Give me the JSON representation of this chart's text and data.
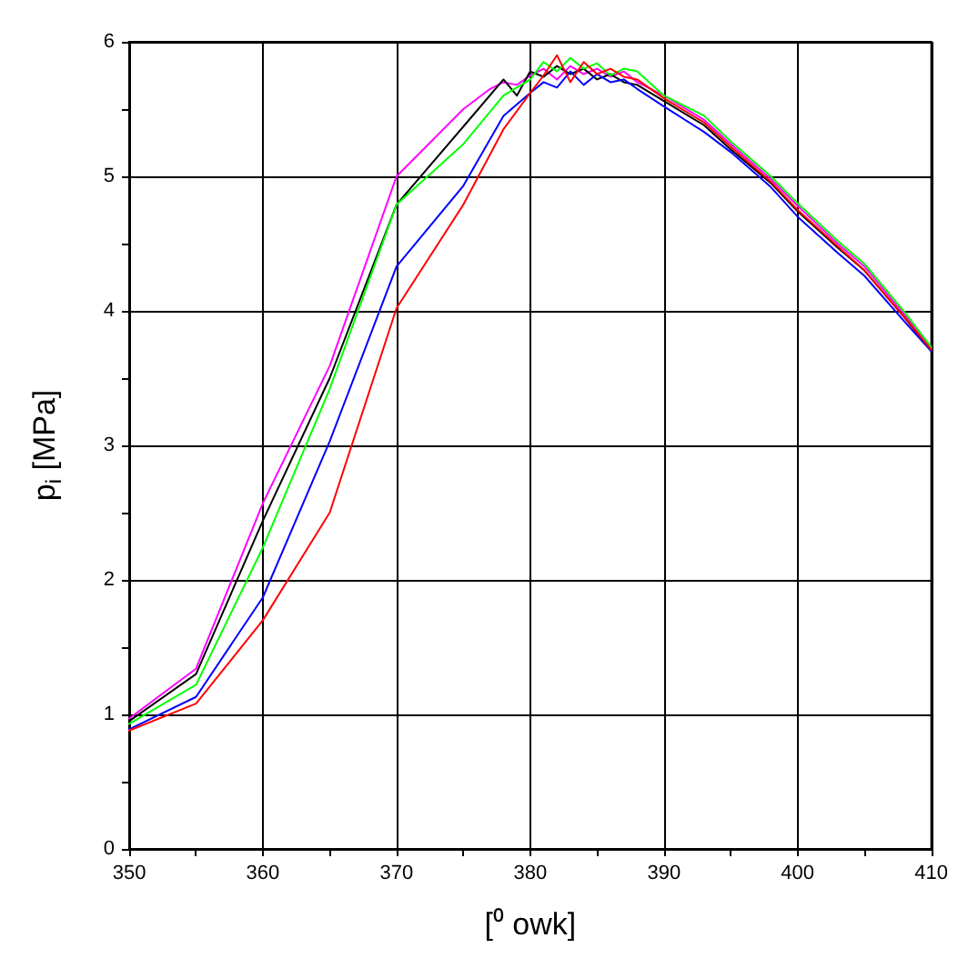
{
  "chart_data": {
    "type": "line",
    "xlabel": "[⁰ owk]",
    "ylabel": "p$_{i}$ [MPa]",
    "xlim": [
      350,
      410
    ],
    "ylim": [
      0,
      6
    ],
    "xticks": [
      350,
      {
        "value": 355,
        "label": null
      },
      360,
      {
        "value": 365,
        "label": null
      },
      370,
      {
        "value": 375,
        "label": null
      },
      380,
      {
        "value": 385,
        "label": null
      },
      390,
      {
        "value": 395,
        "label": null
      },
      400,
      {
        "value": 405,
        "label": null
      },
      410
    ],
    "yticks": [
      0,
      {
        "value": 0.5,
        "label": null
      },
      1,
      {
        "value": 1.5,
        "label": null
      },
      2,
      {
        "value": 2.5,
        "label": null
      },
      3,
      {
        "value": 3.5,
        "label": null
      },
      4,
      {
        "value": 4.5,
        "label": null
      },
      5,
      {
        "value": 5.5,
        "label": null
      },
      6
    ],
    "grid": true,
    "marker": "none",
    "line_style": "solid",
    "series": [
      {
        "color": "#ff00ff",
        "x": [
          350,
          355,
          360,
          365,
          370,
          375,
          377,
          378,
          379,
          380,
          381,
          382,
          383,
          384,
          385,
          386,
          387,
          388,
          390,
          393,
          395,
          398,
          400,
          403,
          405,
          408,
          410
        ],
        "values": [
          0.97,
          1.34,
          2.57,
          3.59,
          5.0,
          5.5,
          5.65,
          5.7,
          5.68,
          5.75,
          5.8,
          5.72,
          5.82,
          5.76,
          5.8,
          5.74,
          5.78,
          5.7,
          5.6,
          5.42,
          5.24,
          4.98,
          4.78,
          4.5,
          4.33,
          3.97,
          3.72
        ]
      },
      {
        "color": "#000000",
        "x": [
          350,
          355,
          360,
          365,
          370,
          375,
          378,
          379,
          380,
          381,
          382,
          383,
          384,
          385,
          386,
          387,
          388,
          390,
          393,
          395,
          398,
          400,
          403,
          405,
          408,
          410
        ],
        "values": [
          0.95,
          1.3,
          2.44,
          3.5,
          4.79,
          5.37,
          5.72,
          5.6,
          5.78,
          5.74,
          5.82,
          5.76,
          5.8,
          5.72,
          5.76,
          5.7,
          5.68,
          5.56,
          5.38,
          5.2,
          4.95,
          4.74,
          4.47,
          4.3,
          3.95,
          3.7
        ]
      },
      {
        "color": "#00ff00",
        "x": [
          350,
          355,
          360,
          365,
          370,
          375,
          378,
          380,
          381,
          382,
          383,
          384,
          385,
          386,
          387,
          388,
          390,
          393,
          395,
          398,
          400,
          403,
          405,
          408,
          410
        ],
        "values": [
          0.93,
          1.22,
          2.24,
          3.42,
          4.79,
          5.24,
          5.6,
          5.72,
          5.85,
          5.78,
          5.88,
          5.8,
          5.84,
          5.75,
          5.8,
          5.78,
          5.6,
          5.45,
          5.26,
          5.0,
          4.8,
          4.52,
          4.35,
          3.99,
          3.73
        ]
      },
      {
        "color": "#0000ff",
        "x": [
          350,
          355,
          360,
          365,
          370,
          375,
          378,
          380,
          381,
          382,
          383,
          384,
          385,
          386,
          387,
          388,
          390,
          393,
          395,
          398,
          400,
          403,
          405,
          408,
          410
        ],
        "values": [
          0.89,
          1.13,
          1.87,
          3.03,
          4.33,
          4.93,
          5.45,
          5.62,
          5.7,
          5.66,
          5.78,
          5.68,
          5.76,
          5.7,
          5.72,
          5.65,
          5.52,
          5.33,
          5.18,
          4.92,
          4.7,
          4.43,
          4.26,
          3.92,
          3.7
        ]
      },
      {
        "color": "#ff0000",
        "x": [
          350,
          355,
          360,
          365,
          370,
          375,
          378,
          380,
          381,
          382,
          383,
          384,
          385,
          386,
          387,
          388,
          390,
          393,
          395,
          398,
          400,
          403,
          405,
          408,
          410
        ],
        "values": [
          0.88,
          1.08,
          1.7,
          2.5,
          4.02,
          4.79,
          5.35,
          5.62,
          5.75,
          5.9,
          5.7,
          5.85,
          5.76,
          5.8,
          5.74,
          5.72,
          5.58,
          5.4,
          5.22,
          4.96,
          4.75,
          4.48,
          4.3,
          3.95,
          3.71
        ]
      }
    ]
  }
}
